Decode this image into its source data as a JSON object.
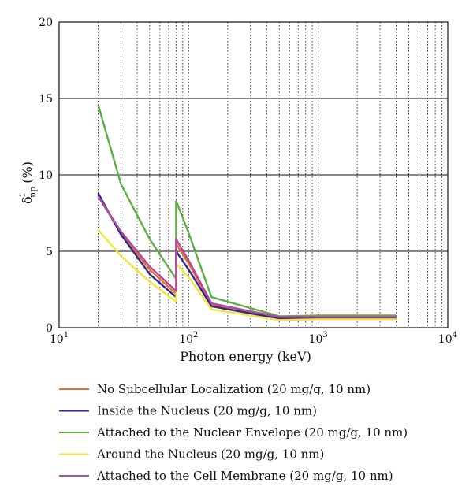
{
  "chart_data": {
    "type": "line",
    "xscale": "log",
    "xlim": [
      10,
      10000
    ],
    "ylim": [
      0,
      20
    ],
    "xlabel": "Photon energy (keV)",
    "ylabel": {
      "main": "δ",
      "sup": "i",
      "sub": "np",
      "unit": "(%)"
    },
    "x_ticks": [
      {
        "value": 10,
        "base": "10",
        "exp": "1"
      },
      {
        "value": 100,
        "base": "10",
        "exp": "2"
      },
      {
        "value": 1000,
        "base": "10",
        "exp": "3"
      },
      {
        "value": 10000,
        "base": "10",
        "exp": "4"
      }
    ],
    "y_ticks": [
      "0",
      "5",
      "10",
      "15",
      "20"
    ],
    "grid": {
      "x": "dotted-minor",
      "y": "solid-major"
    },
    "legend_position": "bottom",
    "x": [
      20,
      30,
      50,
      80,
      80,
      100,
      150,
      500,
      1000,
      2000,
      4000
    ],
    "series": [
      {
        "name": "No Subcellular Localization (20 mg/g, 10 nm)",
        "color": "#e8702a",
        "values": [
          8.6,
          6.2,
          3.8,
          2.2,
          5.5,
          4.2,
          1.5,
          0.65,
          0.65,
          0.6,
          0.6
        ]
      },
      {
        "name": "Inside the Nucleus (20 mg/g, 10 nm)",
        "color": "#2d2a8c",
        "values": [
          8.8,
          6.1,
          3.5,
          2.0,
          5.0,
          3.8,
          1.4,
          0.6,
          0.65,
          0.65,
          0.65
        ]
      },
      {
        "name": "Attached to the Nuclear Envelope (20 mg/g, 10 nm)",
        "color": "#5fae46",
        "values": [
          14.6,
          9.4,
          5.8,
          3.2,
          8.3,
          6.2,
          2.0,
          0.75,
          0.8,
          0.8,
          0.8
        ]
      },
      {
        "name": "Around the Nucleus (20 mg/g, 10 nm)",
        "color": "#f2e63c",
        "values": [
          6.4,
          4.7,
          3.0,
          1.7,
          4.2,
          3.3,
          1.2,
          0.5,
          0.55,
          0.55,
          0.55
        ]
      },
      {
        "name": "Attached to the Cell Membrane (20 mg/g, 10 nm)",
        "color": "#b04aa8",
        "values": [
          8.6,
          6.3,
          4.0,
          2.4,
          5.8,
          4.4,
          1.6,
          0.7,
          0.7,
          0.7,
          0.7
        ]
      }
    ]
  }
}
